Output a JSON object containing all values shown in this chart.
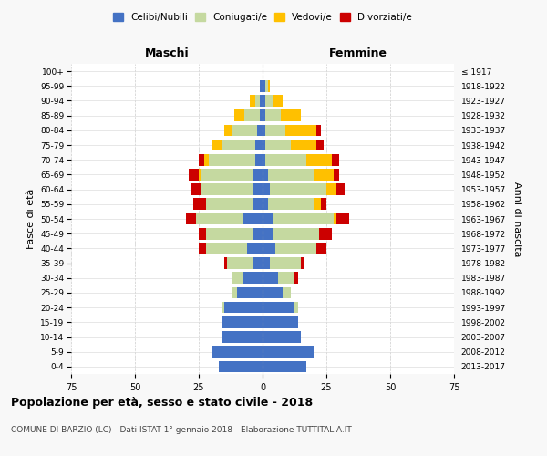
{
  "age_groups": [
    "0-4",
    "5-9",
    "10-14",
    "15-19",
    "20-24",
    "25-29",
    "30-34",
    "35-39",
    "40-44",
    "45-49",
    "50-54",
    "55-59",
    "60-64",
    "65-69",
    "70-74",
    "75-79",
    "80-84",
    "85-89",
    "90-94",
    "95-99",
    "100+"
  ],
  "birth_years": [
    "2013-2017",
    "2008-2012",
    "2003-2007",
    "1998-2002",
    "1993-1997",
    "1988-1992",
    "1983-1987",
    "1978-1982",
    "1973-1977",
    "1968-1972",
    "1963-1967",
    "1958-1962",
    "1953-1957",
    "1948-1952",
    "1943-1947",
    "1938-1942",
    "1933-1937",
    "1928-1932",
    "1923-1927",
    "1918-1922",
    "≤ 1917"
  ],
  "males": {
    "celibi": [
      17,
      20,
      16,
      16,
      15,
      10,
      8,
      4,
      6,
      4,
      8,
      4,
      4,
      4,
      3,
      3,
      2,
      1,
      1,
      1,
      0
    ],
    "coniugati": [
      0,
      0,
      0,
      0,
      1,
      2,
      4,
      10,
      16,
      18,
      18,
      18,
      20,
      20,
      18,
      13,
      10,
      6,
      2,
      0,
      0
    ],
    "vedovi": [
      0,
      0,
      0,
      0,
      0,
      0,
      0,
      0,
      0,
      0,
      0,
      0,
      0,
      1,
      2,
      4,
      3,
      4,
      2,
      0,
      0
    ],
    "divorziati": [
      0,
      0,
      0,
      0,
      0,
      0,
      0,
      1,
      3,
      3,
      4,
      5,
      4,
      4,
      2,
      0,
      0,
      0,
      0,
      0,
      0
    ]
  },
  "females": {
    "nubili": [
      17,
      20,
      15,
      14,
      12,
      8,
      6,
      3,
      5,
      4,
      4,
      2,
      3,
      2,
      1,
      1,
      1,
      1,
      1,
      1,
      0
    ],
    "coniugate": [
      0,
      0,
      0,
      0,
      2,
      3,
      6,
      12,
      16,
      18,
      24,
      18,
      22,
      18,
      16,
      10,
      8,
      6,
      3,
      1,
      0
    ],
    "vedove": [
      0,
      0,
      0,
      0,
      0,
      0,
      0,
      0,
      0,
      0,
      1,
      3,
      4,
      8,
      10,
      10,
      12,
      8,
      4,
      1,
      0
    ],
    "divorziate": [
      0,
      0,
      0,
      0,
      0,
      0,
      2,
      1,
      4,
      5,
      5,
      2,
      3,
      2,
      3,
      3,
      2,
      0,
      0,
      0,
      0
    ]
  },
  "colors": {
    "celibi": "#4472c4",
    "coniugati": "#c5d9a0",
    "vedovi": "#ffc000",
    "divorziati": "#cc0000"
  },
  "xlim": 75,
  "title": "Popolazione per età, sesso e stato civile - 2018",
  "subtitle": "COMUNE DI BARZIO (LC) - Dati ISTAT 1° gennaio 2018 - Elaborazione TUTTITALIA.IT",
  "xlabel_left": "Maschi",
  "xlabel_right": "Femmine",
  "ylabel_left": "Fasce di età",
  "ylabel_right": "Anni di nascita",
  "legend_labels": [
    "Celibi/Nubili",
    "Coniugati/e",
    "Vedovi/e",
    "Divorziati/e"
  ],
  "legend_colors": [
    "#4472c4",
    "#c5d9a0",
    "#ffc000",
    "#cc0000"
  ],
  "bg_color": "#f8f8f8",
  "plot_bg_color": "#ffffff"
}
